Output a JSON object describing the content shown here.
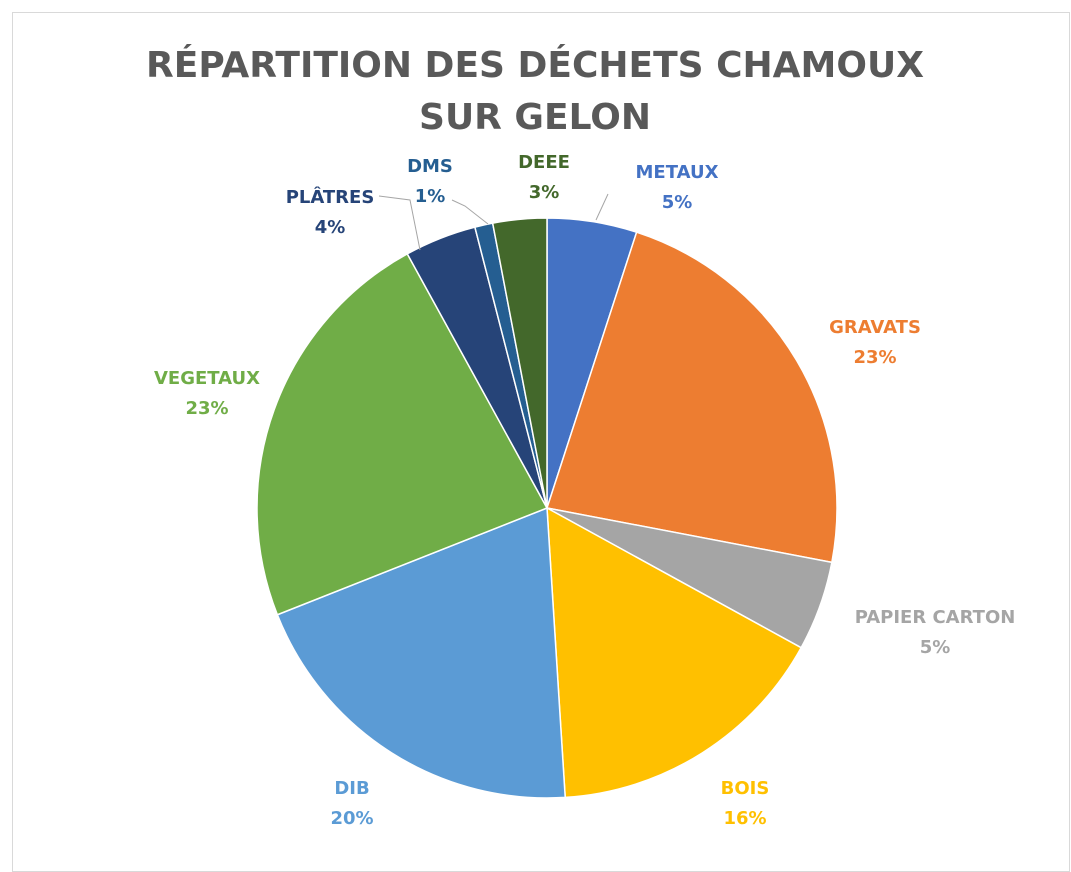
{
  "chart_data": {
    "type": "pie",
    "title": "RÉPARTITION DES DÉCHETS CHAMOUX SUR GELON",
    "categories": [
      "METAUX",
      "GRAVATS",
      "PAPIER CARTON",
      "BOIS",
      "DIB",
      "VEGETAUX",
      "PLÂTRES",
      "DMS",
      "DEEE"
    ],
    "values": [
      5,
      23,
      5,
      16,
      20,
      23,
      4,
      1,
      3
    ],
    "value_labels": [
      "5%",
      "23%",
      "5%",
      "16%",
      "20%",
      "23%",
      "4%",
      "1%",
      "3%"
    ],
    "colors": [
      "#4472c4",
      "#ed7d31",
      "#a5a5a5",
      "#ffc000",
      "#5b9bd5",
      "#70ad47",
      "#264478",
      "#255e91",
      "#43682b"
    ]
  }
}
